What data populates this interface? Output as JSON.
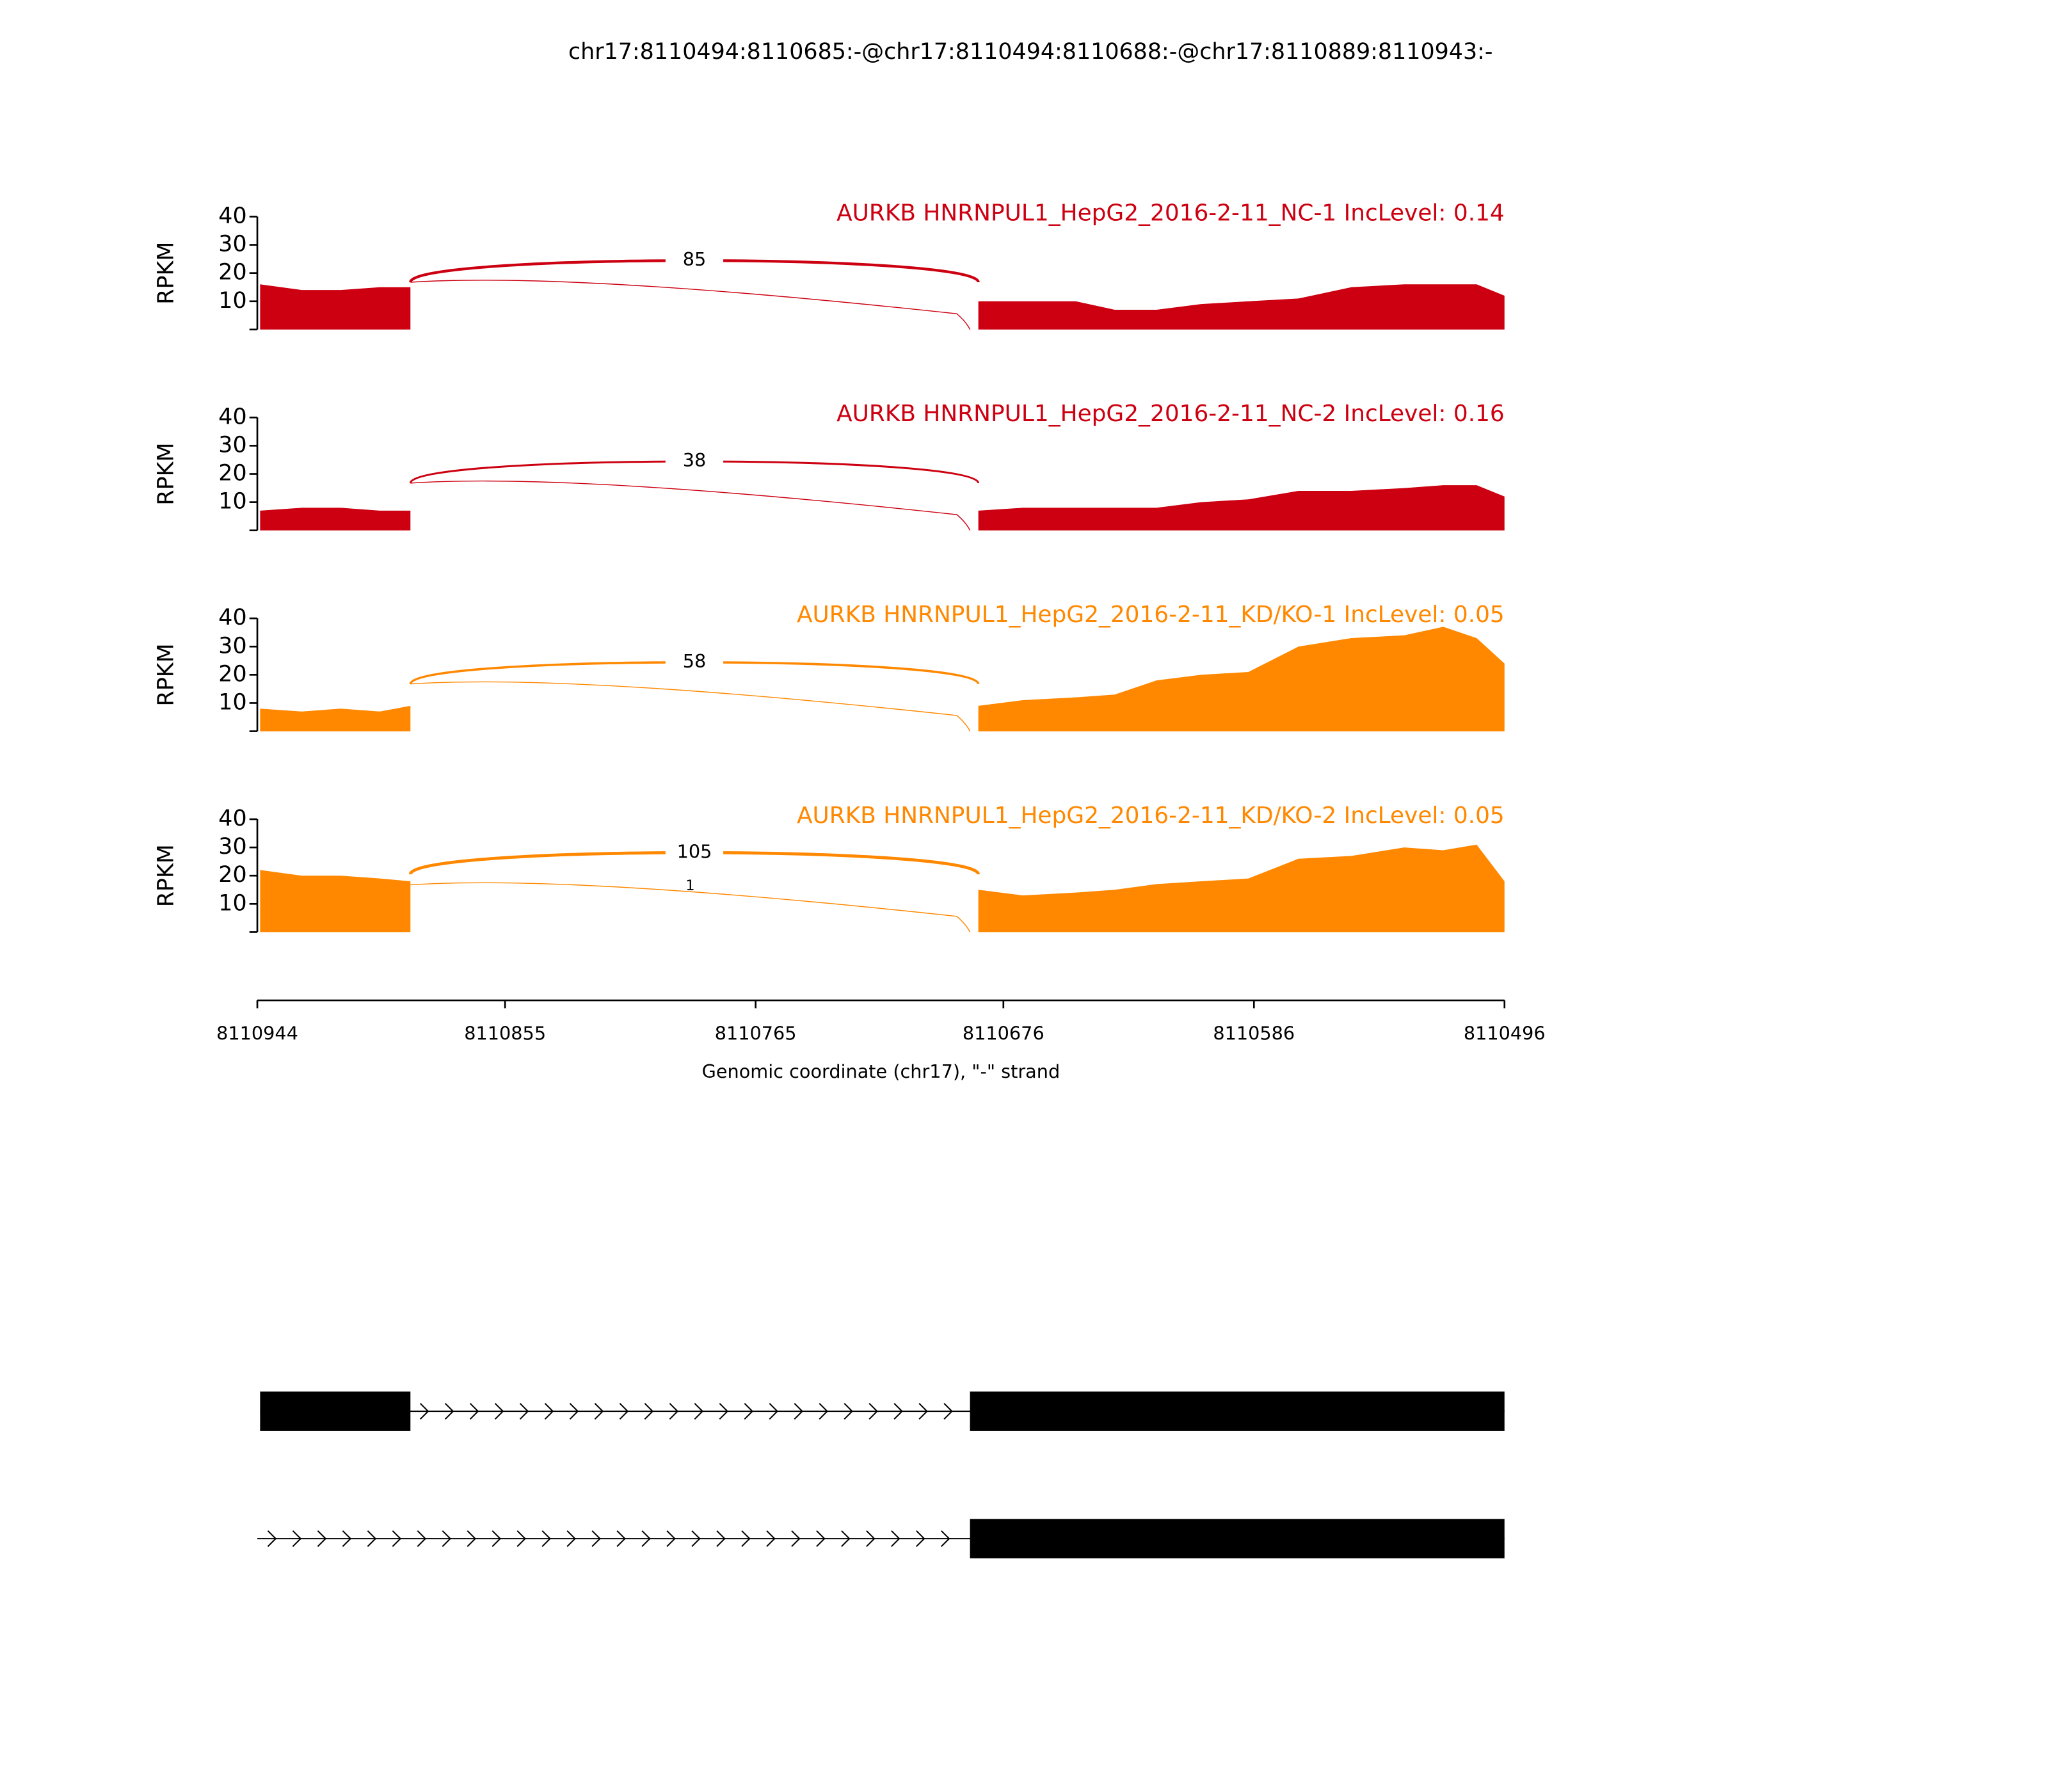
{
  "chart_data": {
    "type": "sashimi",
    "title": "chr17:8110494:8110685:-@chr17:8110494:8110688:-@chr17:8110889:8110943:-",
    "xlabel": "Genomic coordinate (chr17), \"-\" strand",
    "xlim": [
      8110944,
      8110496
    ],
    "xticks": [
      8110944,
      8110855,
      8110765,
      8110676,
      8110586,
      8110496
    ],
    "x": [
      8110943,
      8110928,
      8110914,
      8110900,
      8110889,
      null,
      8110685,
      8110669,
      8110650,
      8110636,
      8110621,
      8110605,
      8110588,
      8110570,
      8110551,
      8110532,
      8110518,
      8110506,
      8110496
    ],
    "panels": [
      {
        "label": "AURKB HNRNPUL1_HepG2_2016-2-11_NC-1 IncLevel: 0.14",
        "color": "#cc0011",
        "ylabel": "RPKM",
        "ylim": [
          0,
          40
        ],
        "yticks": [
          10,
          20,
          30,
          40
        ],
        "values": [
          16,
          14,
          14,
          15,
          15,
          null,
          10,
          10,
          10,
          7,
          7,
          9,
          10,
          11,
          15,
          16,
          16,
          16,
          12
        ],
        "junctions": [
          {
            "start": 8110889,
            "end": 8110685,
            "count": 85
          },
          {
            "start": 8110889,
            "end": 8110688,
            "count": null
          }
        ]
      },
      {
        "label": "AURKB HNRNPUL1_HepG2_2016-2-11_NC-2 IncLevel: 0.16",
        "color": "#cc0011",
        "ylabel": "RPKM",
        "ylim": [
          0,
          40
        ],
        "yticks": [
          10,
          20,
          30,
          40
        ],
        "values": [
          7,
          8,
          8,
          7,
          7,
          null,
          7,
          8,
          8,
          8,
          8,
          10,
          11,
          14,
          14,
          15,
          16,
          16,
          12
        ],
        "junctions": [
          {
            "start": 8110889,
            "end": 8110685,
            "count": 38
          },
          {
            "start": 8110889,
            "end": 8110688,
            "count": null
          }
        ]
      },
      {
        "label": "AURKB HNRNPUL1_HepG2_2016-2-11_KD/KO-1 IncLevel: 0.05",
        "color": "#ff8800",
        "ylabel": "RPKM",
        "ylim": [
          0,
          40
        ],
        "yticks": [
          10,
          20,
          30,
          40
        ],
        "values": [
          8,
          7,
          8,
          7,
          9,
          null,
          9,
          11,
          12,
          13,
          18,
          20,
          21,
          30,
          33,
          34,
          37,
          33,
          24
        ],
        "junctions": [
          {
            "start": 8110889,
            "end": 8110685,
            "count": 58
          },
          {
            "start": 8110889,
            "end": 8110688,
            "count": null
          }
        ]
      },
      {
        "label": "AURKB HNRNPUL1_HepG2_2016-2-11_KD/KO-2 IncLevel: 0.05",
        "color": "#ff8800",
        "ylabel": "RPKM",
        "ylim": [
          0,
          40
        ],
        "yticks": [
          10,
          20,
          30,
          40
        ],
        "values": [
          22,
          20,
          20,
          19,
          18,
          null,
          15,
          13,
          14,
          15,
          17,
          18,
          19,
          26,
          27,
          30,
          29,
          31,
          18
        ],
        "junctions": [
          {
            "start": 8110889,
            "end": 8110685,
            "count": 105
          },
          {
            "start": 8110889,
            "end": 8110688,
            "count": 1
          }
        ]
      }
    ],
    "transcripts": [
      {
        "start": 8110943,
        "end": 8110496,
        "exons": [
          [
            8110943,
            8110889
          ],
          [
            8110688,
            8110496
          ]
        ]
      },
      {
        "start": 8110944,
        "end": 8110496,
        "exons": [
          [
            8110688,
            8110496
          ]
        ]
      }
    ]
  }
}
